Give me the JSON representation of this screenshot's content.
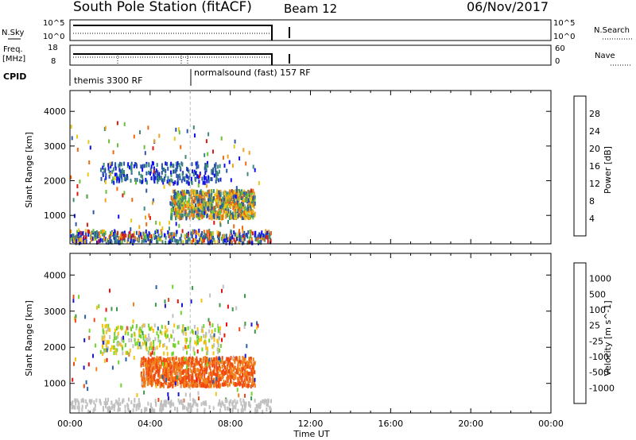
{
  "header": {
    "station": "South Pole Station (fitACF)",
    "beam": "Beam 12",
    "date": "06/Nov/2017"
  },
  "sky_panel": {
    "left_label": "N.Sky",
    "right_label": "N.Search",
    "left_ticks": [
      "10^5",
      "10^0"
    ],
    "right_ticks": [
      "10^5",
      "10^0"
    ]
  },
  "freq_panel": {
    "left_label_1": "Freq.",
    "left_label_2": "[MHz]",
    "right_label": "Nave",
    "left_ticks": [
      "18",
      "8"
    ],
    "right_ticks": [
      "60",
      "0"
    ]
  },
  "cpid": {
    "label": "CPID",
    "modes": [
      {
        "name": "themis 3300 RF",
        "start_hour": 0
      },
      {
        "name": "normalsound (fast) 157 RF",
        "start_hour": 6
      }
    ]
  },
  "colors": {
    "power": [
      "#1010ee",
      "#2a55a8",
      "#3d8a78",
      "#6abf3a",
      "#e9c81a",
      "#f0a21d",
      "#ee6a12",
      "#dd1a10"
    ],
    "velocity": [
      "#ee1010",
      "#f04a12",
      "#f0801a",
      "#f5c20f",
      "#c0c0c0",
      "#6ed42a",
      "#3a9a4a",
      "#2b5fa8",
      "#1818cc"
    ]
  },
  "chart_data": [
    {
      "type": "heatmap",
      "quantity": "Power",
      "xlabel": "Time UT",
      "ylabel": "Slant Range [km]",
      "colorbar_label": "Power [dB]",
      "colorbar_ticks": [
        "4",
        "8",
        "12",
        "16",
        "20",
        "24",
        "28"
      ],
      "x_range_hours": [
        0,
        24
      ],
      "y_range_km": [
        180,
        4600
      ],
      "y_ticks": [
        "1000",
        "2000",
        "3000",
        "4000"
      ],
      "x_ticks": [
        "00:00",
        "04:00",
        "08:00",
        "12:00",
        "16:00",
        "20:00",
        "00:00"
      ],
      "features": [
        {
          "description": "main echo band",
          "time_hours": [
            5.0,
            9.2
          ],
          "range_km": [
            900,
            1700
          ],
          "power_db": [
            8,
            26
          ]
        },
        {
          "description": "upper echo band",
          "time_hours": [
            1.5,
            7.5
          ],
          "range_km": [
            1900,
            2500
          ],
          "power_db": [
            4,
            10
          ]
        },
        {
          "description": "near-range scatter",
          "time_hours": [
            0.0,
            10.0
          ],
          "range_km": [
            180,
            500
          ],
          "power_db": [
            4,
            28
          ]
        }
      ]
    },
    {
      "type": "heatmap",
      "quantity": "Velocity",
      "xlabel": "Time UT",
      "ylabel": "Slant Range [km]",
      "colorbar_label": "Velocity [m s^-1]",
      "colorbar_ticks": [
        "1000",
        "500",
        "100",
        "25",
        "-25",
        "-100",
        "-500",
        "-1000"
      ],
      "x_range_hours": [
        0,
        24
      ],
      "y_range_km": [
        180,
        4600
      ],
      "y_ticks": [
        "1000",
        "2000",
        "3000",
        "4000"
      ],
      "x_ticks": [
        "00:00",
        "04:00",
        "08:00",
        "12:00",
        "16:00",
        "20:00",
        "00:00"
      ],
      "features": [
        {
          "description": "main echo band",
          "time_hours": [
            3.5,
            9.2
          ],
          "range_km": [
            900,
            1700
          ],
          "velocity_ms": [
            -500,
            -100
          ]
        },
        {
          "description": "upper echo band",
          "time_hours": [
            1.5,
            7.5
          ],
          "range_km": [
            1800,
            2600
          ],
          "velocity_ms": [
            -100,
            100
          ]
        }
      ]
    }
  ],
  "axis": {
    "x_title": "Time UT",
    "x_ticks": [
      "00:00",
      "04:00",
      "08:00",
      "12:00",
      "16:00",
      "20:00",
      "00:00"
    ]
  }
}
